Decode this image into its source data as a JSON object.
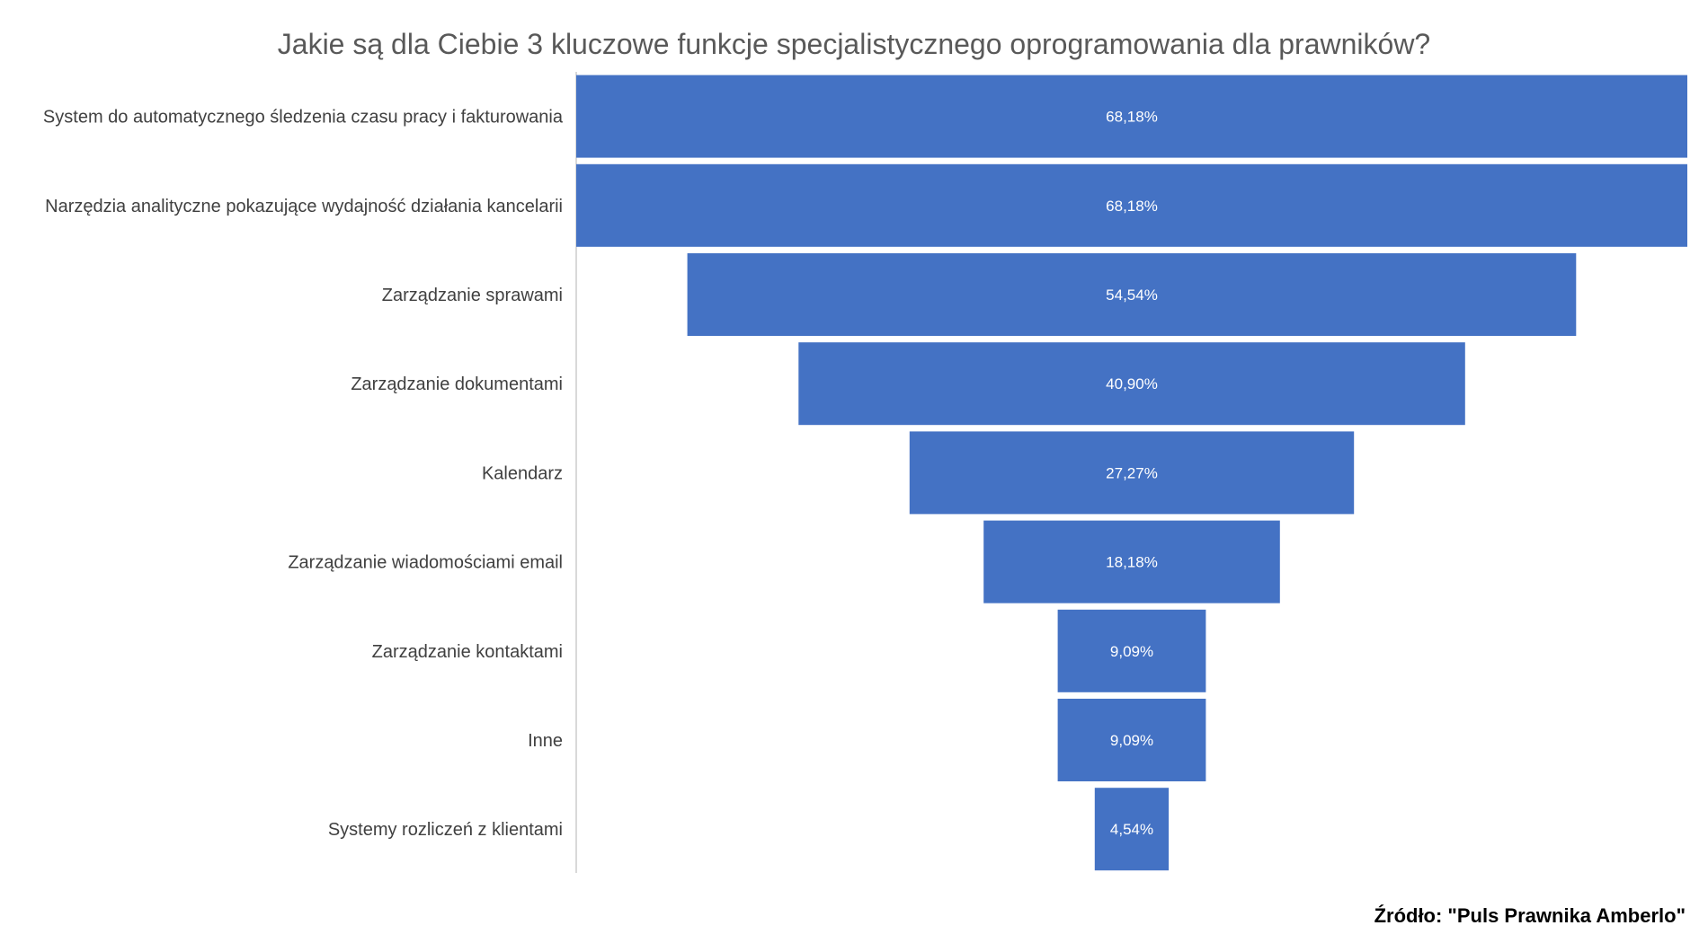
{
  "chart_data": {
    "type": "funnel",
    "title": "Jakie są dla Ciebie 3 kluczowe funkcje specjalistycznego oprogramowania dla prawników?",
    "categories": [
      "System do automatycznego śledzenia czasu pracy i fakturowania",
      "Narzędzia analityczne pokazujące wydajność działania kancelarii",
      "Zarządzanie sprawami",
      "Zarządzanie dokumentami",
      "Kalendarz",
      "Zarządzanie wiadomościami email",
      "Zarządzanie kontaktami",
      "Inne",
      "Systemy rozliczeń z klientami"
    ],
    "values": [
      68.18,
      68.18,
      54.54,
      40.9,
      27.27,
      18.18,
      9.09,
      9.09,
      4.54
    ],
    "value_labels": [
      "68,18%",
      "68,18%",
      "54,54%",
      "40,90%",
      "27,27%",
      "18,18%",
      "9,09%",
      "9,09%",
      "4,54%"
    ],
    "bar_color": "#4472C4",
    "axis_color": "#D9D9D9",
    "grid": false,
    "legend": "none"
  },
  "source": "Źródło: \"Puls Prawnika Amberlo\""
}
